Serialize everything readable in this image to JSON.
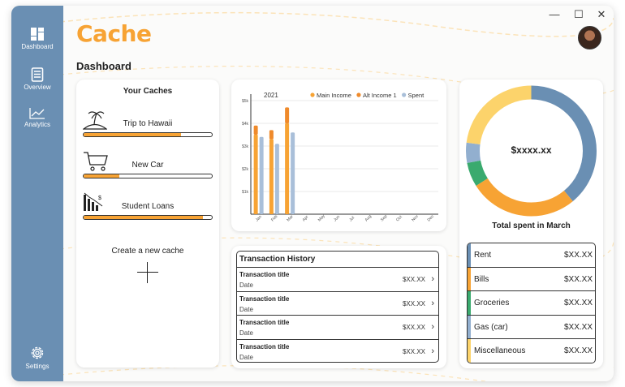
{
  "app": {
    "name": "Cache"
  },
  "window_controls": {
    "minimize": "—",
    "maximize": "☐",
    "close": "✕"
  },
  "sidebar": {
    "items": [
      {
        "label": "Dashboard",
        "icon": "dashboard-icon"
      },
      {
        "label": "Overview",
        "icon": "document-icon"
      },
      {
        "label": "Analytics",
        "icon": "line-chart-icon"
      }
    ],
    "settings": {
      "label": "Settings",
      "icon": "gear-icon"
    }
  },
  "header": {
    "page_title": "Dashboard"
  },
  "caches": {
    "title": "Your Caches",
    "items": [
      {
        "name": "Trip to Hawaii",
        "icon": "island-icon",
        "progress": 0.76
      },
      {
        "name": "New Car",
        "icon": "cart-icon",
        "progress": 0.28
      },
      {
        "name": "Student Loans",
        "icon": "declining-bars-icon",
        "progress": 0.93
      }
    ],
    "create_label": "Create a new cache"
  },
  "chart_data": {
    "type": "bar",
    "title": "2021",
    "categories": [
      "Jan",
      "Feb",
      "Mar",
      "Apr",
      "May",
      "Jun",
      "Jul",
      "Aug",
      "Sep",
      "Oct",
      "Nov",
      "Dec"
    ],
    "y_ticks": [
      "$5k",
      "$4k",
      "$3k",
      "$2k",
      "$1k"
    ],
    "ylim": [
      0,
      5
    ],
    "stacked_income": true,
    "series": [
      {
        "name": "Main Income",
        "color": "#f7a334",
        "values": [
          3.5,
          3.3,
          4.0,
          0,
          0,
          0,
          0,
          0,
          0,
          0,
          0,
          0
        ]
      },
      {
        "name": "Alt Income 1",
        "color": "#ef8a2b",
        "values": [
          0.4,
          0.4,
          0.7,
          0,
          0,
          0,
          0,
          0,
          0,
          0,
          0,
          0
        ]
      },
      {
        "name": "Spent",
        "color": "#a9bfd9",
        "values": [
          3.4,
          3.1,
          3.6,
          0,
          0,
          0,
          0,
          0,
          0,
          0,
          0,
          0
        ]
      }
    ]
  },
  "transactions": {
    "title": "Transaction History",
    "rows": [
      {
        "title": "Transaction title",
        "date": "Date",
        "amount": "$XX.XX"
      },
      {
        "title": "Transaction title",
        "date": "Date",
        "amount": "$XX.XX"
      },
      {
        "title": "Transaction title",
        "date": "Date",
        "amount": "$XX.XX"
      },
      {
        "title": "Transaction title",
        "date": "Date",
        "amount": "$XX.XX"
      }
    ]
  },
  "spending": {
    "total": "$xxxx.xx",
    "caption": "Total spent in March",
    "segments": [
      {
        "name": "Rent",
        "color": "#6a8fb3",
        "share": 0.39
      },
      {
        "name": "Bills",
        "color": "#f7a334",
        "share": 0.27
      },
      {
        "name": "Groceries",
        "color": "#3aaa6e",
        "share": 0.06
      },
      {
        "name": "Gas (car)",
        "color": "#92afcf",
        "share": 0.05
      },
      {
        "name": "Miscellaneous",
        "color": "#fcd36b",
        "share": 0.23
      }
    ],
    "categories": [
      {
        "name": "Rent",
        "amount": "$XX.XX",
        "color": "#6a8fb3"
      },
      {
        "name": "Bills",
        "amount": "$XX.XX",
        "color": "#f7a334"
      },
      {
        "name": "Groceries",
        "amount": "$XX.XX",
        "color": "#3aaa6e"
      },
      {
        "name": "Gas (car)",
        "amount": "$XX.XX",
        "color": "#92afcf"
      },
      {
        "name": "Miscellaneous",
        "amount": "$XX.XX",
        "color": "#fcd36b"
      }
    ]
  }
}
